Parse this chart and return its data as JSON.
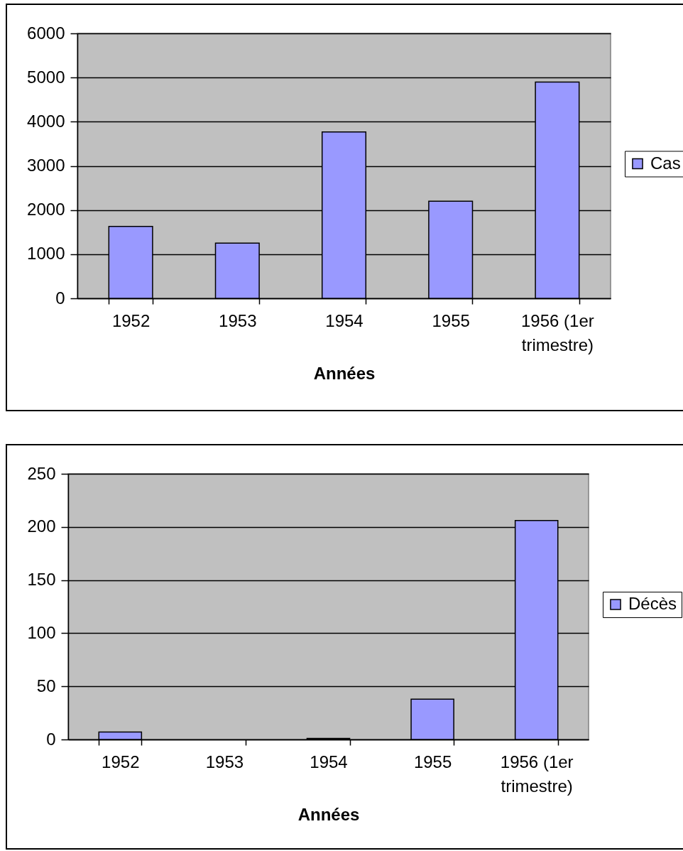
{
  "chart_data": [
    {
      "type": "bar",
      "categories": [
        "1952",
        "1953",
        "1954",
        "1955",
        "1956 (1er trimestre)"
      ],
      "series": [
        {
          "name": "Cas",
          "color": "#9999ff",
          "values": [
            1630,
            1250,
            3770,
            2200,
            4900
          ]
        }
      ],
      "xlabel": "Années",
      "ylim": [
        0,
        6000
      ],
      "yticks": [
        0,
        1000,
        2000,
        3000,
        4000,
        5000,
        6000
      ],
      "grid": "y",
      "legend": "right"
    },
    {
      "type": "bar",
      "categories": [
        "1952",
        "1953",
        "1954",
        "1955",
        "1956 (1er trimestre)"
      ],
      "series": [
        {
          "name": "Décès",
          "color": "#9999ff",
          "values": [
            7,
            null,
            1,
            38,
            206
          ]
        }
      ],
      "xlabel": "Années",
      "ylim": [
        0,
        250
      ],
      "yticks": [
        0,
        50,
        100,
        150,
        200,
        250
      ],
      "grid": "y",
      "legend": "right"
    }
  ]
}
